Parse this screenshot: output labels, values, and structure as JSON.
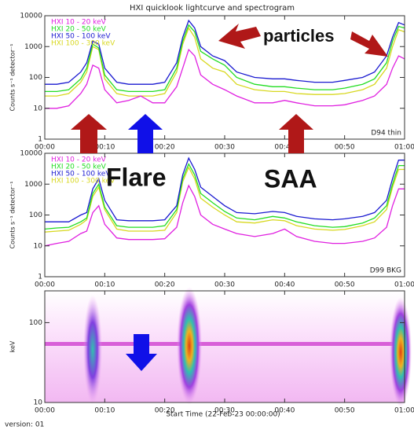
{
  "title": "HXI quicklook lightcurve and spectrogram",
  "xlabel": "Start Time (22-Feb-23 00:00:00)",
  "version": "version: 01",
  "overlay": {
    "particles": "particles",
    "flare": "Flare",
    "saa": "SAA"
  },
  "chart_data": [
    {
      "type": "line",
      "ylabel": "Counts s⁻¹ detector⁻¹",
      "annotation": "D94 thin",
      "log_y": true,
      "xlim": [
        0,
        60
      ],
      "xticks": [
        {
          "value": 0,
          "label": "00:00"
        },
        {
          "value": 10,
          "label": "00:10"
        },
        {
          "value": 20,
          "label": "00:20"
        },
        {
          "value": 30,
          "label": "00:30"
        },
        {
          "value": 40,
          "label": "00:40"
        },
        {
          "value": 50,
          "label": "00:50"
        },
        {
          "value": 60,
          "label": "01:00"
        }
      ],
      "ylim": [
        1,
        10000
      ],
      "yticks": [
        1,
        10,
        100,
        1000,
        10000
      ],
      "x": [
        0,
        2,
        4,
        6,
        7,
        8,
        9,
        10,
        12,
        14,
        16,
        18,
        20,
        22,
        23,
        24,
        25,
        26,
        28,
        30,
        32,
        35,
        38,
        40,
        42,
        45,
        48,
        50,
        53,
        55,
        57,
        58,
        59,
        60
      ],
      "series": [
        {
          "name": "HXI 10 - 20 keV",
          "color": "#e020e0",
          "values": [
            10,
            10,
            12,
            30,
            60,
            250,
            200,
            40,
            15,
            18,
            25,
            15,
            15,
            50,
            200,
            800,
            500,
            120,
            60,
            40,
            25,
            15,
            15,
            18,
            15,
            12,
            12,
            13,
            18,
            25,
            60,
            200,
            500,
            400
          ]
        },
        {
          "name": "HXI 20 - 50 keV",
          "color": "#22dd22",
          "values": [
            35,
            35,
            40,
            90,
            200,
            1200,
            900,
            120,
            40,
            35,
            35,
            35,
            40,
            200,
            1500,
            5000,
            3000,
            700,
            400,
            250,
            100,
            60,
            50,
            50,
            45,
            40,
            40,
            45,
            60,
            90,
            300,
            1500,
            4500,
            4000
          ]
        },
        {
          "name": "HXI 50 - 100 keV",
          "color": "#1a1ad0",
          "values": [
            60,
            60,
            70,
            150,
            300,
            1500,
            1200,
            200,
            70,
            60,
            60,
            60,
            70,
            300,
            2000,
            7000,
            4000,
            1000,
            500,
            350,
            150,
            100,
            90,
            90,
            80,
            70,
            70,
            80,
            100,
            150,
            500,
            2000,
            6000,
            5000
          ]
        },
        {
          "name": "HXI 100 - 300 keV",
          "color": "#d8d820",
          "values": [
            25,
            25,
            30,
            70,
            150,
            1000,
            800,
            90,
            30,
            25,
            25,
            25,
            30,
            150,
            1200,
            4000,
            2000,
            400,
            200,
            150,
            60,
            40,
            35,
            35,
            30,
            28,
            28,
            30,
            40,
            60,
            200,
            1000,
            3500,
            3000
          ]
        }
      ]
    },
    {
      "type": "line",
      "ylabel": "Counts s⁻¹ detector⁻¹",
      "annotation": "D99 BKG",
      "log_y": true,
      "xlim": [
        0,
        60
      ],
      "xticks": [
        {
          "value": 0,
          "label": "00:00"
        },
        {
          "value": 10,
          "label": "00:10"
        },
        {
          "value": 20,
          "label": "00:20"
        },
        {
          "value": 30,
          "label": "00:30"
        },
        {
          "value": 40,
          "label": "00:40"
        },
        {
          "value": 50,
          "label": "00:50"
        },
        {
          "value": 60,
          "label": "01:00"
        }
      ],
      "ylim": [
        1,
        10000
      ],
      "yticks": [
        1,
        10,
        100,
        1000,
        10000
      ],
      "x": [
        0,
        2,
        4,
        6,
        7,
        8,
        9,
        10,
        12,
        14,
        16,
        18,
        20,
        22,
        23,
        24,
        25,
        26,
        28,
        30,
        32,
        35,
        38,
        40,
        42,
        45,
        48,
        50,
        53,
        55,
        57,
        58,
        59,
        60
      ],
      "series": [
        {
          "name": "HXI 10 - 20 keV",
          "color": "#e020e0",
          "values": [
            10,
            12,
            14,
            25,
            30,
            120,
            200,
            50,
            18,
            16,
            16,
            16,
            17,
            40,
            250,
            900,
            400,
            100,
            50,
            35,
            25,
            20,
            25,
            35,
            20,
            14,
            12,
            12,
            14,
            18,
            40,
            200,
            700,
            700
          ]
        },
        {
          "name": "HXI 20 - 50 keV",
          "color": "#22dd22",
          "values": [
            35,
            38,
            40,
            60,
            80,
            500,
            1000,
            180,
            45,
            40,
            40,
            40,
            45,
            150,
            1500,
            4500,
            2000,
            500,
            250,
            130,
            80,
            70,
            90,
            80,
            60,
            45,
            40,
            42,
            55,
            80,
            200,
            1000,
            4000,
            4000
          ]
        },
        {
          "name": "HXI 50 - 100 keV",
          "color": "#1a1ad0",
          "values": [
            60,
            60,
            60,
            100,
            120,
            700,
            1500,
            300,
            70,
            65,
            65,
            65,
            70,
            200,
            2000,
            7000,
            3000,
            800,
            400,
            200,
            120,
            110,
            130,
            120,
            90,
            75,
            70,
            75,
            90,
            120,
            300,
            1500,
            6000,
            6000
          ]
        },
        {
          "name": "HXI 100 - 300 keV",
          "color": "#d8d820",
          "values": [
            28,
            30,
            32,
            50,
            70,
            400,
            800,
            150,
            35,
            30,
            30,
            30,
            32,
            120,
            1200,
            3500,
            1500,
            350,
            180,
            100,
            60,
            55,
            70,
            65,
            45,
            35,
            32,
            34,
            45,
            60,
            150,
            800,
            3000,
            3000
          ]
        }
      ]
    },
    {
      "type": "spectrogram",
      "ylabel": "keV",
      "log_y": true,
      "xlim": [
        0,
        60
      ],
      "xticks": [
        {
          "value": 0,
          "label": "00:00"
        },
        {
          "value": 10,
          "label": "00:10"
        },
        {
          "value": 20,
          "label": "00:20"
        },
        {
          "value": 30,
          "label": "00:30"
        },
        {
          "value": 40,
          "label": "00:40"
        },
        {
          "value": 50,
          "label": "00:50"
        },
        {
          "value": 60,
          "label": "01:00"
        }
      ],
      "ylim": [
        10,
        250
      ],
      "yticks": [
        10,
        100
      ]
    }
  ]
}
